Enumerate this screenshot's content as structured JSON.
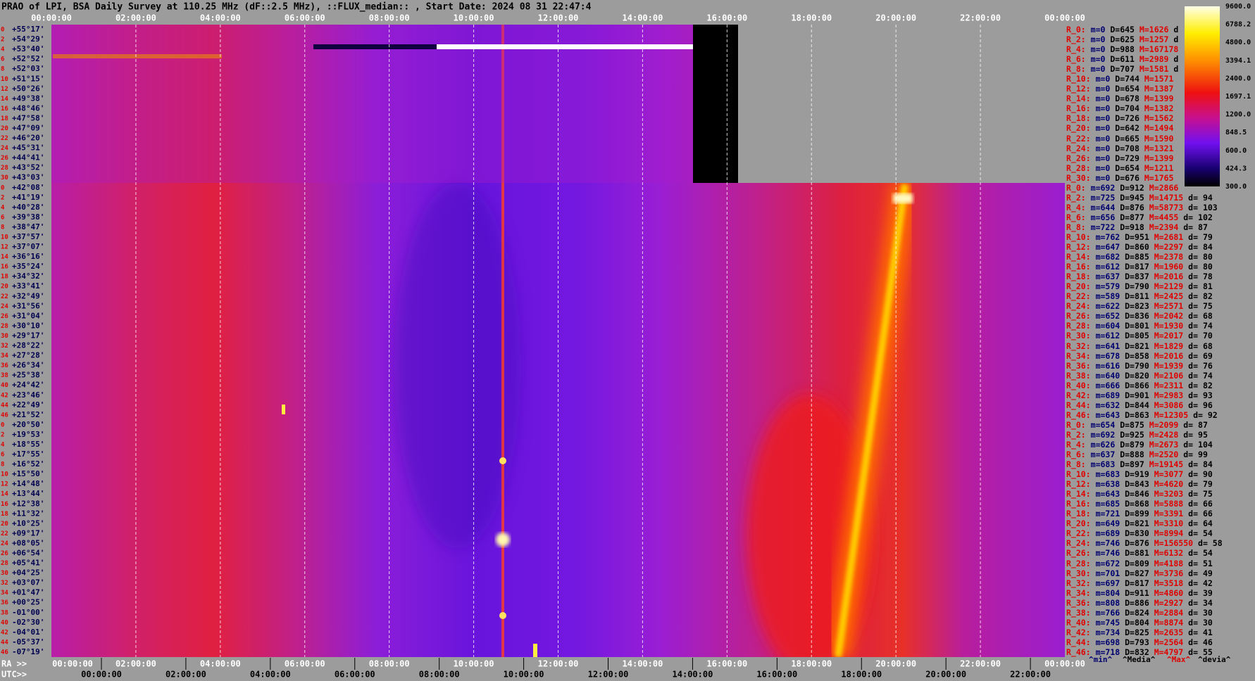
{
  "header": {
    "title": "PRAO of LPI, BSA Daily Survey at 110.25 MHz (dF::2.5 MHz), ::FLUX_median:: , Start Date: 2024 08 31 22:47:4"
  },
  "top_axis": {
    "labels": [
      "00:00:00",
      "02:00:00",
      "04:00:00",
      "06:00:00",
      "08:00:00",
      "10:00:00",
      "12:00:00",
      "14:00:00",
      "16:00:00",
      "18:00:00",
      "20:00:00",
      "22:00:00",
      "00:00:00"
    ]
  },
  "bottom_axis": {
    "ra_prefix": "RA >>",
    "ra_labels": [
      "00:00:00",
      "02:00:00",
      "04:00:00",
      "06:00:00",
      "08:00:00",
      "10:00:00",
      "12:00:00",
      "14:00:00",
      "16:00:00",
      "18:00:00",
      "20:00:00",
      "22:00:00",
      "00:00:00"
    ],
    "utc_prefix": "UTC>>",
    "utc_labels": [
      "00:00:00",
      "02:00:00",
      "04:00:00",
      "06:00:00",
      "08:00:00",
      "10:00:00",
      "12:00:00",
      "14:00:00",
      "16:00:00",
      "18:00:00",
      "20:00:00",
      "22:00:00"
    ]
  },
  "colorbar": {
    "ticks": [
      "9600.0",
      "6788.2",
      "4800.0",
      "3394.1",
      "2400.0",
      "1697.1",
      "1200.0",
      "848.5",
      "600.0",
      "424.3",
      "300.0"
    ]
  },
  "rows": [
    {
      "index": "0",
      "dec": "+55°17'",
      "stats": [
        "R_0:",
        "m=0",
        "D=645",
        "M=1626",
        "d"
      ]
    },
    {
      "index": "2",
      "dec": "+54°29'",
      "stats": [
        "R_2:",
        "m=0",
        "D=625",
        "M=1257",
        "d"
      ]
    },
    {
      "index": "4",
      "dec": "+53°40'",
      "stats": [
        "R_4:",
        "m=0",
        "D=988",
        "M=167178"
      ]
    },
    {
      "index": "6",
      "dec": "+52°52'",
      "stats": [
        "R_6:",
        "m=0",
        "D=611",
        "M=2989",
        "d"
      ]
    },
    {
      "index": "8",
      "dec": "+52°03'",
      "stats": [
        "R_8:",
        "m=0",
        "D=707",
        "M=1581",
        "d"
      ]
    },
    {
      "index": "10",
      "dec": "+51°15'",
      "stats": [
        "R_10:",
        "m=0",
        "D=744",
        "M=1571"
      ]
    },
    {
      "index": "12",
      "dec": "+50°26'",
      "stats": [
        "R_12:",
        "m=0",
        "D=654",
        "M=1387"
      ]
    },
    {
      "index": "14",
      "dec": "+49°38'",
      "stats": [
        "R_14:",
        "m=0",
        "D=678",
        "M=1399"
      ]
    },
    {
      "index": "16",
      "dec": "+48°46'",
      "stats": [
        "R_16:",
        "m=0",
        "D=704",
        "M=1382"
      ]
    },
    {
      "index": "18",
      "dec": "+47°58'",
      "stats": [
        "R_18:",
        "m=0",
        "D=726",
        "M=1562"
      ]
    },
    {
      "index": "20",
      "dec": "+47°09'",
      "stats": [
        "R_20:",
        "m=0",
        "D=642",
        "M=1494"
      ]
    },
    {
      "index": "22",
      "dec": "+46°20'",
      "stats": [
        "R_22:",
        "m=0",
        "D=665",
        "M=1590"
      ]
    },
    {
      "index": "24",
      "dec": "+45°31'",
      "stats": [
        "R_24:",
        "m=0",
        "D=708",
        "M=1321"
      ]
    },
    {
      "index": "26",
      "dec": "+44°41'",
      "stats": [
        "R_26:",
        "m=0",
        "D=729",
        "M=1399"
      ]
    },
    {
      "index": "28",
      "dec": "+43°52'",
      "stats": [
        "R_28:",
        "m=0",
        "D=654",
        "M=1211"
      ]
    },
    {
      "index": "30",
      "dec": "+43°03'",
      "stats": [
        "R_30:",
        "m=0",
        "D=676",
        "M=1765"
      ]
    },
    {
      "index": "0",
      "dec": "+42°08'",
      "stats": [
        "R_0:",
        "m=692",
        "D=912",
        "M=2866"
      ]
    },
    {
      "index": "2",
      "dec": "+41°19'",
      "stats": [
        "R_2:",
        "m=725",
        "D=945",
        "M=14715",
        "d= 94"
      ]
    },
    {
      "index": "4",
      "dec": "+40°28'",
      "stats": [
        "R_4:",
        "m=644",
        "D=876",
        "M=58773",
        "d= 103"
      ]
    },
    {
      "index": "6",
      "dec": "+39°38'",
      "stats": [
        "R_6:",
        "m=656",
        "D=877",
        "M=4455",
        "d= 102"
      ]
    },
    {
      "index": "8",
      "dec": "+38°47'",
      "stats": [
        "R_8:",
        "m=722",
        "D=918",
        "M=2394",
        "d= 87"
      ]
    },
    {
      "index": "10",
      "dec": "+37°57'",
      "stats": [
        "R_10:",
        "m=762",
        "D=951",
        "M=2681",
        "d= 79"
      ]
    },
    {
      "index": "12",
      "dec": "+37°07'",
      "stats": [
        "R_12:",
        "m=647",
        "D=860",
        "M=2297",
        "d= 84"
      ]
    },
    {
      "index": "14",
      "dec": "+36°16'",
      "stats": [
        "R_14:",
        "m=682",
        "D=885",
        "M=2378",
        "d= 80"
      ]
    },
    {
      "index": "16",
      "dec": "+35°24'",
      "stats": [
        "R_16:",
        "m=612",
        "D=817",
        "M=1960",
        "d= 80"
      ]
    },
    {
      "index": "18",
      "dec": "+34°32'",
      "stats": [
        "R_18:",
        "m=637",
        "D=837",
        "M=2016",
        "d= 78"
      ]
    },
    {
      "index": "20",
      "dec": "+33°41'",
      "stats": [
        "R_20:",
        "m=579",
        "D=790",
        "M=2129",
        "d= 81"
      ]
    },
    {
      "index": "22",
      "dec": "+32°49'",
      "stats": [
        "R_22:",
        "m=589",
        "D=811",
        "M=2425",
        "d= 82"
      ]
    },
    {
      "index": "24",
      "dec": "+31°56'",
      "stats": [
        "R_24:",
        "m=622",
        "D=823",
        "M=2571",
        "d= 75"
      ]
    },
    {
      "index": "26",
      "dec": "+31°04'",
      "stats": [
        "R_26:",
        "m=652",
        "D=836",
        "M=2042",
        "d= 68"
      ]
    },
    {
      "index": "28",
      "dec": "+30°10'",
      "stats": [
        "R_28:",
        "m=604",
        "D=801",
        "M=1930",
        "d= 74"
      ]
    },
    {
      "index": "30",
      "dec": "+29°17'",
      "stats": [
        "R_30:",
        "m=612",
        "D=805",
        "M=2017",
        "d= 70"
      ]
    },
    {
      "index": "32",
      "dec": "+28°22'",
      "stats": [
        "R_32:",
        "m=641",
        "D=821",
        "M=1829",
        "d= 68"
      ]
    },
    {
      "index": "34",
      "dec": "+27°28'",
      "stats": [
        "R_34:",
        "m=678",
        "D=858",
        "M=2016",
        "d= 69"
      ]
    },
    {
      "index": "36",
      "dec": "+26°34'",
      "stats": [
        "R_36:",
        "m=616",
        "D=790",
        "M=1939",
        "d= 76"
      ]
    },
    {
      "index": "38",
      "dec": "+25°38'",
      "stats": [
        "R_38:",
        "m=640",
        "D=820",
        "M=2106",
        "d= 74"
      ]
    },
    {
      "index": "40",
      "dec": "+24°42'",
      "stats": [
        "R_40:",
        "m=666",
        "D=866",
        "M=2311",
        "d= 82"
      ]
    },
    {
      "index": "42",
      "dec": "+23°46'",
      "stats": [
        "R_42:",
        "m=689",
        "D=901",
        "M=2983",
        "d= 93"
      ]
    },
    {
      "index": "44",
      "dec": "+22°49'",
      "stats": [
        "R_44:",
        "m=632",
        "D=844",
        "M=3086",
        "d= 96"
      ]
    },
    {
      "index": "46",
      "dec": "+21°52'",
      "stats": [
        "R_46:",
        "m=643",
        "D=863",
        "M=12305",
        "d= 92"
      ]
    },
    {
      "index": "0",
      "dec": "+20°50'",
      "stats": [
        "R_0:",
        "m=654",
        "D=875",
        "M=2099",
        "d= 87"
      ]
    },
    {
      "index": "2",
      "dec": "+19°53'",
      "stats": [
        "R_2:",
        "m=692",
        "D=925",
        "M=2428",
        "d= 95"
      ]
    },
    {
      "index": "4",
      "dec": "+18°55'",
      "stats": [
        "R_4:",
        "m=626",
        "D=879",
        "M=2673",
        "d= 104"
      ]
    },
    {
      "index": "6",
      "dec": "+17°55'",
      "stats": [
        "R_6:",
        "m=637",
        "D=888",
        "M=2520",
        "d= 99"
      ]
    },
    {
      "index": "8",
      "dec": "+16°52'",
      "stats": [
        "R_8:",
        "m=683",
        "D=897",
        "M=19145",
        "d= 84"
      ]
    },
    {
      "index": "10",
      "dec": "+15°50'",
      "stats": [
        "R_10:",
        "m=683",
        "D=919",
        "M=3077",
        "d= 90"
      ]
    },
    {
      "index": "12",
      "dec": "+14°48'",
      "stats": [
        "R_12:",
        "m=638",
        "D=843",
        "M=4620",
        "d= 79"
      ]
    },
    {
      "index": "14",
      "dec": "+13°44'",
      "stats": [
        "R_14:",
        "m=643",
        "D=846",
        "M=3203",
        "d= 75"
      ]
    },
    {
      "index": "16",
      "dec": "+12°38'",
      "stats": [
        "R_16:",
        "m=685",
        "D=868",
        "M=5888",
        "d= 66"
      ]
    },
    {
      "index": "18",
      "dec": "+11°32'",
      "stats": [
        "R_18:",
        "m=721",
        "D=899",
        "M=3391",
        "d= 66"
      ]
    },
    {
      "index": "20",
      "dec": "+10°25'",
      "stats": [
        "R_20:",
        "m=649",
        "D=821",
        "M=3310",
        "d= 64"
      ]
    },
    {
      "index": "22",
      "dec": "+09°17'",
      "stats": [
        "R_22:",
        "m=689",
        "D=830",
        "M=8994",
        "d= 54"
      ]
    },
    {
      "index": "24",
      "dec": "+08°05'",
      "stats": [
        "R_24:",
        "m=746",
        "D=876",
        "M=156550",
        "d= 58"
      ]
    },
    {
      "index": "26",
      "dec": "+06°54'",
      "stats": [
        "R_26:",
        "m=746",
        "D=881",
        "M=6132",
        "d= 54"
      ]
    },
    {
      "index": "28",
      "dec": "+05°41'",
      "stats": [
        "R_28:",
        "m=672",
        "D=809",
        "M=4188",
        "d= 51"
      ]
    },
    {
      "index": "30",
      "dec": "+04°25'",
      "stats": [
        "R_30:",
        "m=701",
        "D=827",
        "M=3736",
        "d= 49"
      ]
    },
    {
      "index": "32",
      "dec": "+03°07'",
      "stats": [
        "R_32:",
        "m=697",
        "D=817",
        "M=3518",
        "d= 42"
      ]
    },
    {
      "index": "34",
      "dec": "+01°47'",
      "stats": [
        "R_34:",
        "m=804",
        "D=911",
        "M=4860",
        "d= 39"
      ]
    },
    {
      "index": "36",
      "dec": "+00°25'",
      "stats": [
        "R_36:",
        "m=808",
        "D=886",
        "M=2927",
        "d= 34"
      ]
    },
    {
      "index": "38",
      "dec": "-01°00'",
      "stats": [
        "R_38:",
        "m=766",
        "D=824",
        "M=2884",
        "d= 30"
      ]
    },
    {
      "index": "40",
      "dec": "-02°30'",
      "stats": [
        "R_40:",
        "m=745",
        "D=804",
        "M=8874",
        "d= 30"
      ]
    },
    {
      "index": "42",
      "dec": "-04°01'",
      "stats": [
        "R_42:",
        "m=734",
        "D=825",
        "M=2635",
        "d= 41"
      ]
    },
    {
      "index": "44",
      "dec": "-05°37'",
      "stats": [
        "R_44:",
        "m=698",
        "D=793",
        "M=2564",
        "d= 46"
      ]
    },
    {
      "index": "46",
      "dec": "-07°19'",
      "stats": [
        "R_46:",
        "m=718",
        "D=832",
        "M=4797",
        "d= 55"
      ]
    }
  ],
  "footer": {
    "legend": [
      "^min^",
      "^Media^",
      "^Max^",
      "^devia^"
    ]
  }
}
